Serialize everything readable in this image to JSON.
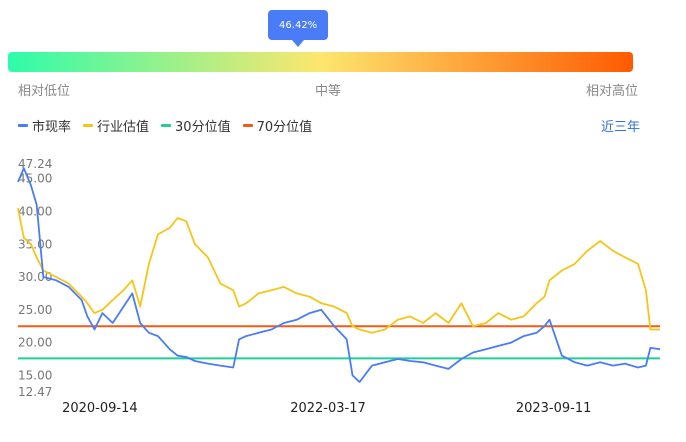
{
  "gauge": {
    "percent_label": "46.42%",
    "percent": 0.4642,
    "low_label": "相对低位",
    "mid_label": "中等",
    "high_label": "相对高位",
    "colors": [
      "#2efcaa",
      "#fde66e",
      "#ff5a00"
    ]
  },
  "legend": [
    {
      "name": "市现率",
      "color": "#4a7cf7"
    },
    {
      "name": "行业估值",
      "color": "#f5c518"
    },
    {
      "name": "30分位值",
      "color": "#1fcf98"
    },
    {
      "name": "70分位值",
      "color": "#f25c19"
    }
  ],
  "range_label": "近三年",
  "chart_data": {
    "type": "line",
    "title": "",
    "xlabel": "",
    "ylabel": "",
    "ylim": [
      12.47,
      47.24
    ],
    "x_range": [
      "2020-03-01",
      "2024-05-24"
    ],
    "y_tick_labels": [
      "47.24",
      "45.00",
      "40.00",
      "35.00",
      "30.00",
      "25.00",
      "20.00",
      "15.00",
      "12.47"
    ],
    "y_tick_values": [
      47.24,
      45,
      40,
      35,
      30,
      25,
      20,
      15,
      12.47
    ],
    "x_tick_labels": [
      "2020-09-14",
      "2022-03-17",
      "2023-09-11"
    ],
    "grid": false,
    "series": [
      {
        "name": "市现率",
        "color": "#4a7cf7",
        "x": [
          "2020-03-01",
          "2020-03-15",
          "2020-04-01",
          "2020-04-15",
          "2020-05-01",
          "2020-06-01",
          "2020-07-01",
          "2020-08-01",
          "2020-08-15",
          "2020-09-01",
          "2020-09-20",
          "2020-10-15",
          "2020-11-10",
          "2020-12-01",
          "2020-12-20",
          "2021-01-10",
          "2021-02-01",
          "2021-03-01",
          "2021-03-20",
          "2021-04-10",
          "2021-05-01",
          "2021-06-01",
          "2021-07-01",
          "2021-08-01",
          "2021-08-15",
          "2021-09-01",
          "2021-10-01",
          "2021-11-01",
          "2021-12-01",
          "2022-01-01",
          "2022-02-01",
          "2022-03-01",
          "2022-04-01",
          "2022-05-01",
          "2022-05-15",
          "2022-06-01",
          "2022-07-01",
          "2022-08-01",
          "2022-09-01",
          "2022-10-01",
          "2022-11-01",
          "2022-12-01",
          "2023-01-01",
          "2023-02-01",
          "2023-03-01",
          "2023-04-01",
          "2023-05-01",
          "2023-06-01",
          "2023-07-01",
          "2023-08-01",
          "2023-08-20",
          "2023-09-01",
          "2023-10-01",
          "2023-11-01",
          "2023-12-01",
          "2024-01-01",
          "2024-02-01",
          "2024-03-01",
          "2024-04-01",
          "2024-04-20",
          "2024-05-01",
          "2024-05-24"
        ],
        "values": [
          44.5,
          46.6,
          44.0,
          41.0,
          30.0,
          29.5,
          28.5,
          26.5,
          24.0,
          22.0,
          24.5,
          23.0,
          25.5,
          27.5,
          23.0,
          21.5,
          21.0,
          19.0,
          18.0,
          17.8,
          17.2,
          16.8,
          16.5,
          16.2,
          20.5,
          21.0,
          21.5,
          22.0,
          23.0,
          23.5,
          24.5,
          25.0,
          22.5,
          20.5,
          15.0,
          14.0,
          16.5,
          17.0,
          17.5,
          17.2,
          17.0,
          16.5,
          16.0,
          17.5,
          18.5,
          19.0,
          19.5,
          20.0,
          21.0,
          21.5,
          22.5,
          23.5,
          18.0,
          17.0,
          16.5,
          17.0,
          16.5,
          16.8,
          16.2,
          16.5,
          19.2,
          19.0
        ]
      },
      {
        "name": "行业估值",
        "color": "#f5c518",
        "x": [
          "2020-03-01",
          "2020-03-15",
          "2020-04-01",
          "2020-04-15",
          "2020-05-01",
          "2020-06-01",
          "2020-07-01",
          "2020-08-01",
          "2020-08-15",
          "2020-09-01",
          "2020-09-20",
          "2020-10-15",
          "2020-11-10",
          "2020-12-01",
          "2020-12-20",
          "2021-01-10",
          "2021-02-01",
          "2021-03-01",
          "2021-03-20",
          "2021-04-10",
          "2021-05-01",
          "2021-06-01",
          "2021-07-01",
          "2021-08-01",
          "2021-08-15",
          "2021-09-01",
          "2021-10-01",
          "2021-11-01",
          "2021-12-01",
          "2022-01-01",
          "2022-02-01",
          "2022-03-01",
          "2022-04-01",
          "2022-05-01",
          "2022-05-15",
          "2022-06-01",
          "2022-07-01",
          "2022-08-01",
          "2022-09-01",
          "2022-10-01",
          "2022-11-01",
          "2022-12-01",
          "2023-01-01",
          "2023-02-01",
          "2023-03-01",
          "2023-04-01",
          "2023-05-01",
          "2023-06-01",
          "2023-07-01",
          "2023-08-01",
          "2023-08-20",
          "2023-09-01",
          "2023-10-01",
          "2023-11-01",
          "2023-12-01",
          "2024-01-01",
          "2024-02-01",
          "2024-03-01",
          "2024-04-01",
          "2024-04-20",
          "2024-05-01",
          "2024-05-24"
        ],
        "values": [
          40.5,
          36.0,
          35.0,
          33.0,
          31.0,
          30.0,
          29.0,
          27.0,
          26.0,
          24.5,
          25.0,
          26.5,
          28.0,
          29.5,
          25.5,
          32.0,
          36.5,
          37.5,
          39.0,
          38.5,
          35.0,
          33.0,
          29.0,
          28.0,
          25.5,
          26.0,
          27.5,
          28.0,
          28.5,
          27.5,
          27.0,
          26.0,
          25.5,
          24.5,
          22.5,
          22.0,
          21.5,
          22.0,
          23.5,
          24.0,
          23.0,
          24.5,
          23.0,
          26.0,
          22.5,
          23.0,
          24.5,
          23.5,
          24.0,
          26.0,
          27.0,
          29.5,
          31.0,
          32.0,
          34.0,
          35.5,
          34.0,
          33.0,
          32.0,
          28.0,
          22.0,
          22.0
        ]
      },
      {
        "name": "30分位值",
        "color": "#1fcf98",
        "x": [
          "2020-03-01",
          "2024-05-24"
        ],
        "values": [
          17.6,
          17.6
        ]
      },
      {
        "name": "70分位值",
        "color": "#f25c19",
        "x": [
          "2020-03-01",
          "2024-05-24"
        ],
        "values": [
          22.5,
          22.5
        ]
      }
    ]
  }
}
